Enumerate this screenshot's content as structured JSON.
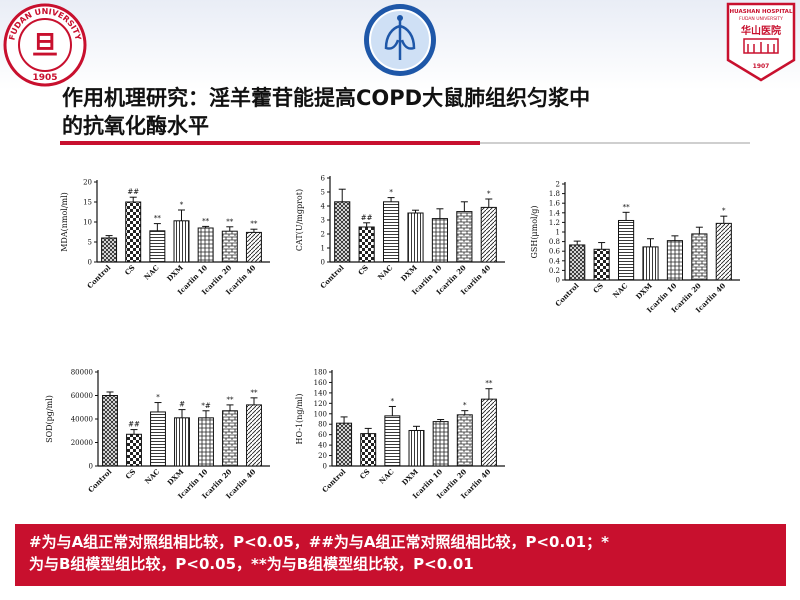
{
  "header": {
    "left_logo": {
      "text_top": "FUDAN UNIVERSITY",
      "char": "旦",
      "year": "1905",
      "color": "#c8102e"
    },
    "center_logo": {
      "color": "#1e57a8"
    },
    "right_logo": {
      "text_top": "HUASHAN HOSPITAL",
      "text_sub": "FUDAN UNIVERSITY",
      "name_cn": "华山医院",
      "year": "1907",
      "color": "#c8102e"
    }
  },
  "title": {
    "line1": "作用机理研究：淫羊藿苷能提高COPD大鼠肺组织匀浆中",
    "line2": "的抗氧化酶水平"
  },
  "note": {
    "line1": "#为与A组正常对照组相比较，P<0.05，##为与A组正常对照组相比较，P<0.01；*",
    "line2": "为与B组模型组比较，P<0.05，**为与B组模型组比较，P<0.01"
  },
  "chart_data": [
    {
      "type": "bar",
      "ylabel": "MDA(nmol/ml)",
      "categories": [
        "Control",
        "CS",
        "NAC",
        "DXM",
        "Icariin 10",
        "Icariin 20",
        "Icariin 40"
      ],
      "values": [
        6.0,
        15.0,
        7.8,
        10.3,
        8.5,
        7.7,
        7.4
      ],
      "errors": [
        0.6,
        1.2,
        1.8,
        2.7,
        0.4,
        1.1,
        0.8
      ],
      "annotations": [
        "",
        "##",
        "**",
        "*",
        "**",
        "**",
        "**"
      ],
      "ylim": [
        0,
        20
      ],
      "yticks": [
        0,
        5,
        10,
        15,
        20
      ]
    },
    {
      "type": "bar",
      "ylabel": "CAT(U/mgprot)",
      "categories": [
        "Control",
        "CS",
        "NAC",
        "DXM",
        "Icariin 10",
        "Icariin 20",
        "Icariin 40"
      ],
      "values": [
        4.3,
        2.5,
        4.3,
        3.5,
        3.1,
        3.6,
        3.9
      ],
      "errors": [
        0.9,
        0.3,
        0.3,
        0.2,
        0.7,
        0.7,
        0.6
      ],
      "annotations": [
        "",
        "##",
        "*",
        "",
        "",
        "",
        "*"
      ],
      "ylim": [
        0,
        6
      ],
      "yticks": [
        0,
        1,
        2,
        3,
        4,
        5,
        6
      ]
    },
    {
      "type": "bar",
      "ylabel": "GSH(μmol/g)",
      "categories": [
        "Control",
        "CS",
        "NAC",
        "DXM",
        "Icariin 10",
        "Icariin 20",
        "Icariin 40"
      ],
      "values": [
        0.73,
        0.64,
        1.24,
        0.69,
        0.82,
        0.96,
        1.18
      ],
      "errors": [
        0.08,
        0.14,
        0.17,
        0.17,
        0.1,
        0.14,
        0.15
      ],
      "annotations": [
        "",
        "",
        "**",
        "",
        "",
        "",
        "*"
      ],
      "ylim": [
        0,
        2.0
      ],
      "yticks": [
        0,
        0.2,
        0.4,
        0.6,
        0.8,
        1.0,
        1.2,
        1.4,
        1.6,
        1.8,
        2.0
      ],
      "yticklabels": [
        "0",
        "0.2",
        "0.4",
        "0.6",
        "0.8",
        "1",
        "1.2",
        "1.4",
        "1.6",
        "1.8",
        "2"
      ]
    },
    {
      "type": "bar",
      "ylabel": "SOD(pg/ml)",
      "categories": [
        "Control",
        "CS",
        "NAC",
        "DXM",
        "Icariin 10",
        "Icariin 20",
        "Icariin 40"
      ],
      "values": [
        60000,
        27000,
        46000,
        41000,
        41000,
        47000,
        52000
      ],
      "errors": [
        3000,
        4000,
        8000,
        7000,
        6000,
        5000,
        6000
      ],
      "annotations": [
        "",
        "##",
        "*",
        "#",
        "*#",
        "**",
        "**"
      ],
      "ylim": [
        0,
        80000
      ],
      "yticks": [
        0,
        20000,
        40000,
        60000,
        80000
      ]
    },
    {
      "type": "bar",
      "ylabel": "HO-1(ng/ml)",
      "categories": [
        "Control",
        "CS",
        "NAC",
        "DXM",
        "Icariin 10",
        "Icariin 20",
        "Icariin 40"
      ],
      "values": [
        82,
        62,
        96,
        68,
        85,
        98,
        128
      ],
      "errors": [
        12,
        10,
        18,
        8,
        4,
        8,
        20
      ],
      "annotations": [
        "",
        "",
        "*",
        "",
        "",
        "*",
        "**"
      ],
      "ylim": [
        0,
        180
      ],
      "yticks": [
        0,
        20,
        40,
        60,
        80,
        100,
        120,
        140,
        160,
        180
      ]
    }
  ]
}
